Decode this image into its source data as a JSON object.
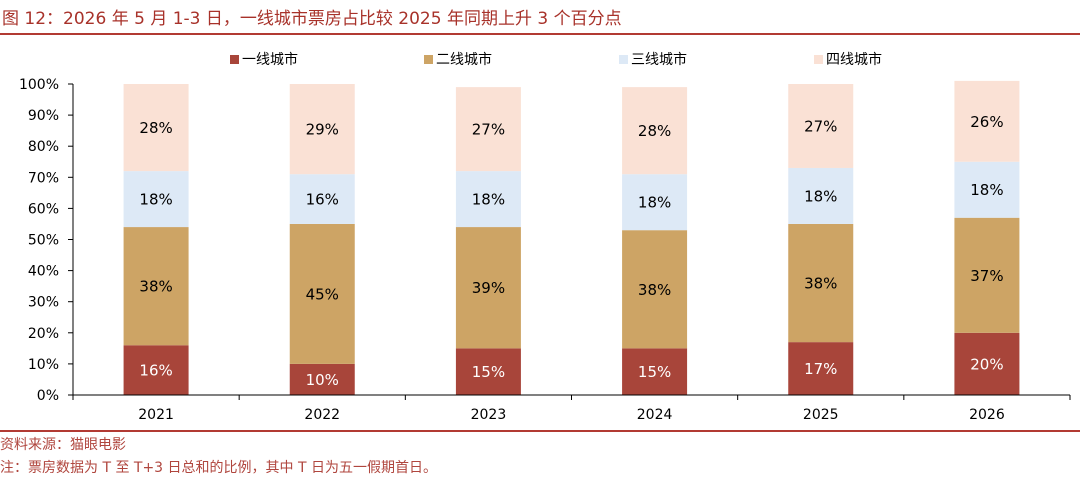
{
  "title": "图 12：2026 年 5 月 1-3 日，一线城市票房占比较 2025 年同期上升 3 个百分点",
  "source": "资料来源：猫眼电影",
  "note": "注：票房数据为 T 至 T+3 日总和的比例，其中 T 日为五一假期首日。",
  "chart_data": {
    "type": "bar",
    "stacked": true,
    "categories": [
      "2021",
      "2022",
      "2023",
      "2024",
      "2025",
      "2026"
    ],
    "series": [
      {
        "name": "一线城市",
        "color": "#a8453a",
        "values": [
          16,
          10,
          15,
          15,
          17,
          20
        ],
        "labels": [
          "16%",
          "10%",
          "15%",
          "15%",
          "17%",
          "20%"
        ]
      },
      {
        "name": "二线城市",
        "color": "#cda465",
        "values": [
          38,
          45,
          39,
          38,
          38,
          37
        ],
        "labels": [
          "38%",
          "45%",
          "39%",
          "38%",
          "38%",
          "37%"
        ]
      },
      {
        "name": "三线城市",
        "color": "#dde9f6",
        "values": [
          18,
          16,
          18,
          18,
          18,
          18
        ],
        "labels": [
          "18%",
          "16%",
          "18%",
          "18%",
          "18%",
          "18%"
        ]
      },
      {
        "name": "四线城市",
        "color": "#fae1d5",
        "values": [
          28,
          29,
          27,
          28,
          27,
          26
        ],
        "labels": [
          "28%",
          "29%",
          "27%",
          "28%",
          "27%",
          "26%"
        ]
      }
    ],
    "yticks": [
      "0%",
      "10%",
      "20%",
      "30%",
      "40%",
      "50%",
      "60%",
      "70%",
      "80%",
      "90%",
      "100%"
    ],
    "ylim": [
      0,
      100
    ],
    "legend_position": "top",
    "grid": false
  }
}
